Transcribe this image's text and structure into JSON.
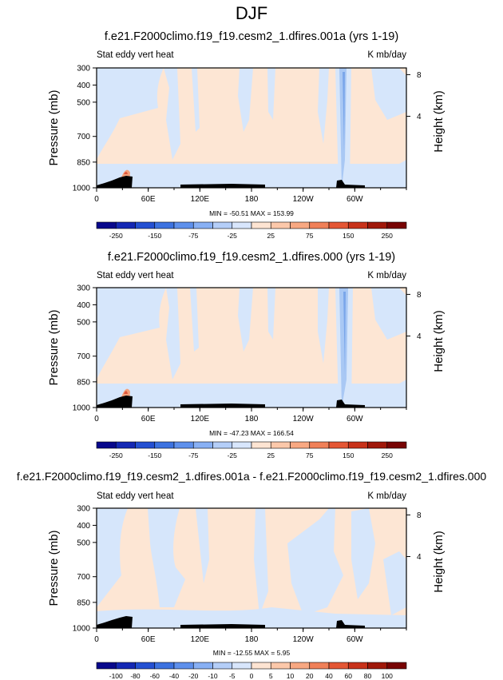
{
  "page_title": "DJF",
  "colors": {
    "pos_light": "#fde6d4",
    "neg_light": "#d6e6fb",
    "neg_mid": "#a9c8f4",
    "pos_mid": "#f4a07a",
    "terrain": "#000000"
  },
  "chart_data": [
    {
      "type": "heatmap",
      "title": "f.e21.F2000climo.f19_f19.cesm2_1.dfires.001a (yrs 1-19)",
      "left_label": "Stat eddy vert heat",
      "right_label": "K mb/day",
      "ylabel": "Pressure (mb)",
      "ylabel_right": "Height (km)",
      "y_ticks": [
        300,
        400,
        500,
        700,
        850,
        1000
      ],
      "y_right_ticks": [
        8,
        4
      ],
      "x_ticks": [
        "0",
        "60E",
        "120E",
        "180",
        "120W",
        "60W"
      ],
      "stats": "MIN = -50.51   MAX = 153.99",
      "colorbar_labels": [
        "-250",
        "-150",
        "-75",
        "-25",
        "25",
        "75",
        "150",
        "250"
      ],
      "colorbar_colors": [
        "#08088c",
        "#1428b4",
        "#2450d2",
        "#3c72e0",
        "#5e90ec",
        "#88b0f4",
        "#b4ceF8",
        "#d8e6fc",
        "#fde4d2",
        "#fcc8aa",
        "#f8a882",
        "#f08058",
        "#e45634",
        "#c8321a",
        "#a0180a",
        "#780404"
      ],
      "min": -50.51,
      "max": 153.99
    },
    {
      "type": "heatmap",
      "title": "f.e21.F2000climo.f19_f19.cesm2_1.dfires.000 (yrs 1-19)",
      "left_label": "Stat eddy vert heat",
      "right_label": "K mb/day",
      "ylabel": "Pressure (mb)",
      "ylabel_right": "Height (km)",
      "y_ticks": [
        300,
        400,
        500,
        700,
        850,
        1000
      ],
      "y_right_ticks": [
        8,
        4
      ],
      "x_ticks": [
        "0",
        "60E",
        "120E",
        "180",
        "120W",
        "60W"
      ],
      "stats": "MIN = -47.23   MAX = 166.54",
      "colorbar_labels": [
        "-250",
        "-150",
        "-75",
        "-25",
        "25",
        "75",
        "150",
        "250"
      ],
      "colorbar_colors": [
        "#08088c",
        "#1428b4",
        "#2450d2",
        "#3c72e0",
        "#5e90ec",
        "#88b0f4",
        "#b4ceF8",
        "#d8e6fc",
        "#fde4d2",
        "#fcc8aa",
        "#f8a882",
        "#f08058",
        "#e45634",
        "#c8321a",
        "#a0180a",
        "#780404"
      ],
      "min": -47.23,
      "max": 166.54
    },
    {
      "type": "heatmap",
      "title": "f.e21.F2000climo.f19_f19.cesm2_1.dfires.001a - f.e21.F2000climo.f19_f19.cesm2_1.dfires.000",
      "left_label": "Stat eddy vert heat",
      "right_label": "K mb/day",
      "ylabel": "Pressure (mb)",
      "ylabel_right": "Height (km)",
      "y_ticks": [
        300,
        400,
        500,
        700,
        850,
        1000
      ],
      "y_right_ticks": [
        8,
        4
      ],
      "x_ticks": [
        "0",
        "60E",
        "120E",
        "180",
        "120W",
        "60W"
      ],
      "stats": "MIN = -12.55   MAX =  5.95",
      "colorbar_labels": [
        "-100",
        "-80",
        "-60",
        "-40",
        "-20",
        "-10",
        "-5",
        "0",
        "5",
        "10",
        "20",
        "40",
        "60",
        "80",
        "100"
      ],
      "colorbar_colors": [
        "#08088c",
        "#1428b4",
        "#2450d2",
        "#3c72e0",
        "#5e90ec",
        "#88b0f4",
        "#b4cef8",
        "#d8e6fc",
        "#fde4d2",
        "#fcc8aa",
        "#f8a882",
        "#f08058",
        "#e45634",
        "#c8321a",
        "#a0180a",
        "#780404"
      ],
      "min": -12.55,
      "max": 5.95
    }
  ]
}
